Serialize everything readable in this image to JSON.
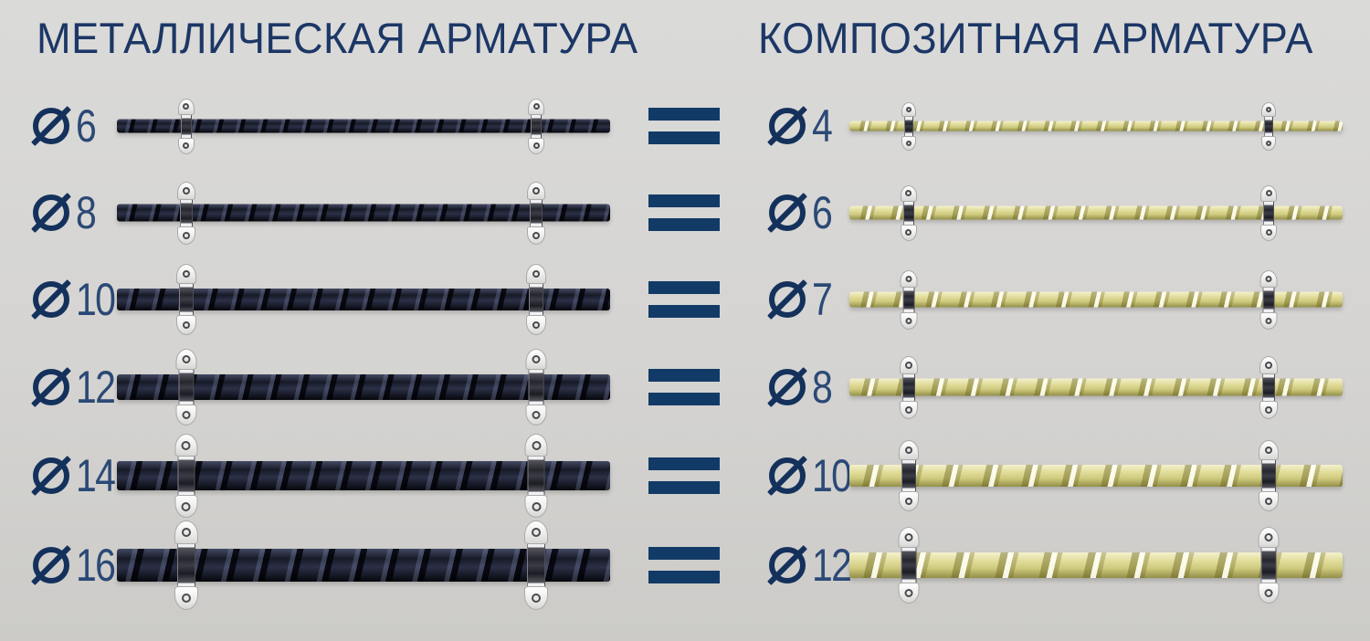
{
  "header": {
    "left_title": "МЕТАЛЛИЧЕСКАЯ АРМАТУРА",
    "right_title": "КОМПОЗИТНАЯ АРМАТУРА"
  },
  "icons": {
    "diameter_symbol": "Ø",
    "equals_symbol": "="
  },
  "rows": [
    {
      "metal_diameter_mm": "6",
      "composite_diameter_mm": "4"
    },
    {
      "metal_diameter_mm": "8",
      "composite_diameter_mm": "6"
    },
    {
      "metal_diameter_mm": "10",
      "composite_diameter_mm": "7"
    },
    {
      "metal_diameter_mm": "12",
      "composite_diameter_mm": "8"
    },
    {
      "metal_diameter_mm": "14",
      "composite_diameter_mm": "10"
    },
    {
      "metal_diameter_mm": "16",
      "composite_diameter_mm": "12"
    }
  ],
  "colors": {
    "title_navy": "#1c3766",
    "equals_navy": "#123a66",
    "diameter_icon_navy": "#14315c",
    "metal_rebar_dark": "#171a26",
    "metal_rebar_highlight": "#434a63",
    "composite_rebar_body": "#ddd994",
    "composite_rebar_shadow": "#938f48",
    "background_gray": "#d5d4d2",
    "clip_silver": "#ececea"
  }
}
